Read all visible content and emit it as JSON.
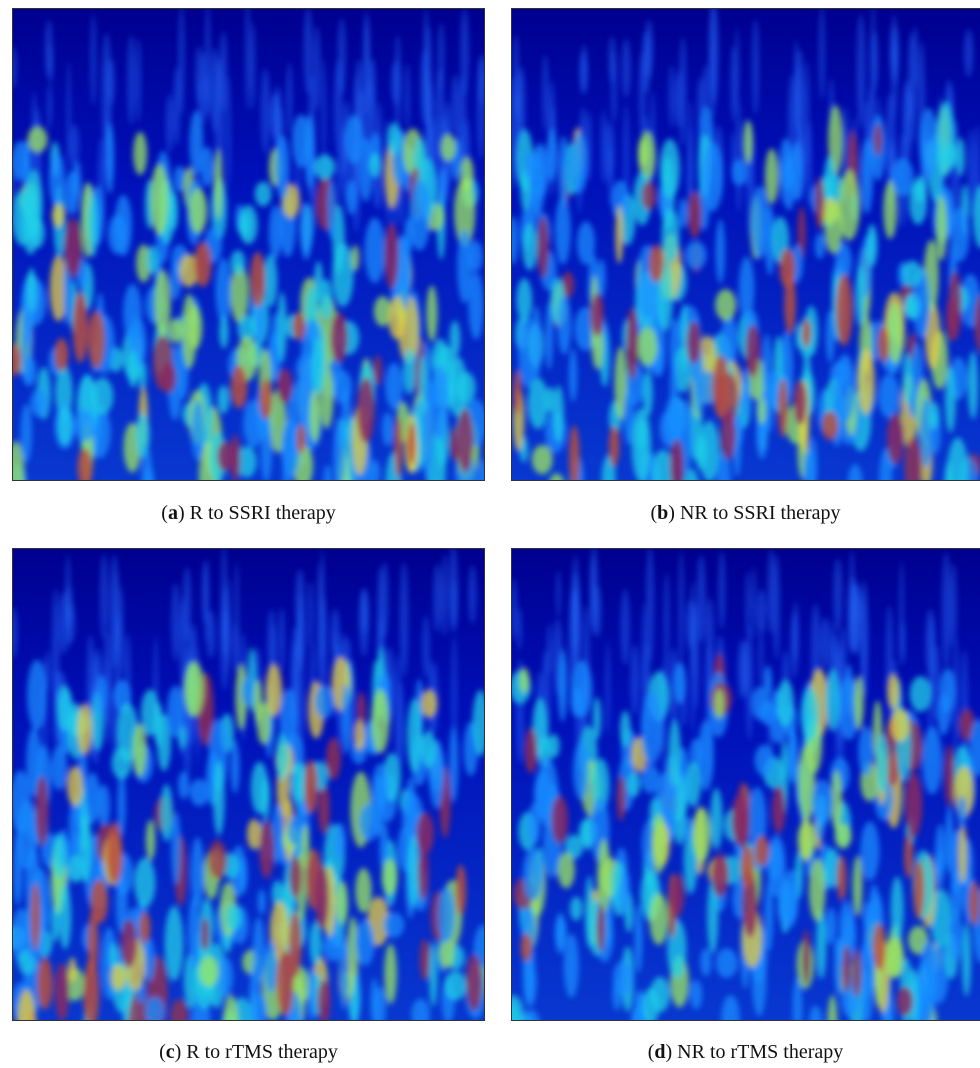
{
  "panels": [
    {
      "open": "(",
      "letter": "a",
      "text": ") R to SSRI therapy"
    },
    {
      "open": "(",
      "letter": "b",
      "text": ") NR to SSRI therapy"
    },
    {
      "open": "(",
      "letter": "c",
      "text": ") R to rTMS therapy"
    },
    {
      "open": "(",
      "letter": "d",
      "text": ") NR to rTMS therapy"
    }
  ]
}
